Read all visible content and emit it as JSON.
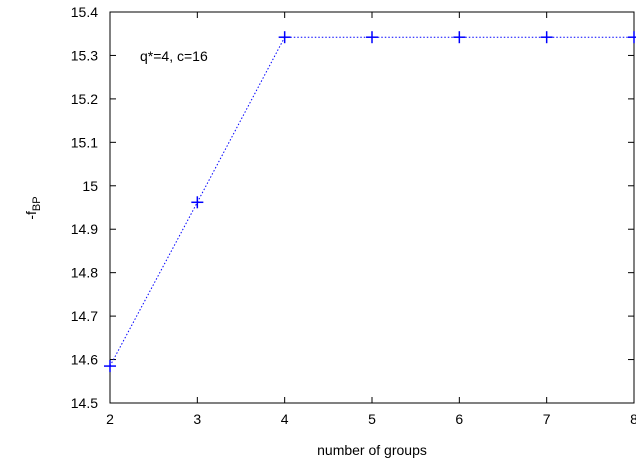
{
  "chart_data": {
    "type": "line",
    "title": "",
    "xlabel": "number of groups",
    "ylabel_main": "-f",
    "ylabel_sub": "BP",
    "annotation": "q*=4, c=16",
    "xlim": [
      2,
      8
    ],
    "ylim": [
      14.5,
      15.4
    ],
    "x_ticks": [
      "2",
      "3",
      "4",
      "5",
      "6",
      "7",
      "8"
    ],
    "y_ticks": [
      "14.5",
      "14.6",
      "14.7",
      "14.8",
      "14.9",
      "15",
      "15.1",
      "15.2",
      "15.3",
      "15.4"
    ],
    "grid": false,
    "series": [
      {
        "x": [
          2,
          3,
          4,
          5,
          6,
          7,
          8
        ],
        "y": [
          14.585,
          14.962,
          15.342,
          15.342,
          15.342,
          15.342,
          15.342
        ],
        "color": "#0000ff",
        "marker": "plus",
        "line_style": "dotted"
      }
    ]
  }
}
